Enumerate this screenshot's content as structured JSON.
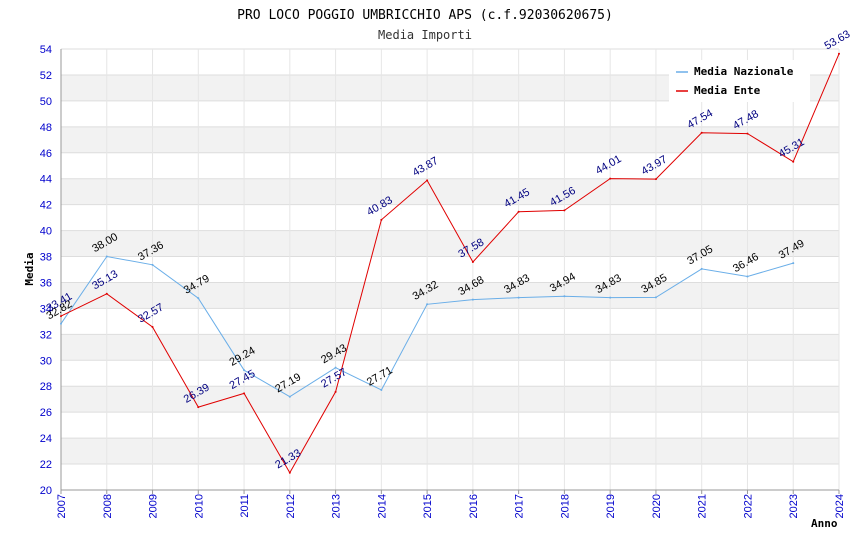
{
  "chart_data": {
    "type": "line",
    "title": "PRO LOCO POGGIO UMBRICCHIO APS (c.f.92030620675)",
    "subtitle": "Media Importi",
    "xlabel": "Anno",
    "ylabel": "Media",
    "ylim": [
      20,
      54
    ],
    "ystep": 2,
    "x": [
      2007,
      2008,
      2009,
      2010,
      2011,
      2012,
      2013,
      2014,
      2015,
      2016,
      2017,
      2018,
      2019,
      2020,
      2021,
      2022,
      2023,
      2024
    ],
    "series": [
      {
        "name": "Media Nazionale",
        "color": "#6aaee8",
        "values": [
          32.82,
          38.0,
          37.36,
          34.79,
          29.24,
          27.19,
          29.43,
          27.71,
          34.32,
          34.68,
          34.83,
          34.94,
          34.83,
          34.85,
          37.05,
          36.46,
          37.49,
          null
        ],
        "labels": [
          "32.82",
          "38.00",
          "37.36",
          "34.79",
          "29.24",
          "27.19",
          "29.43",
          "27.71",
          "34.32",
          "34.68",
          "34.83",
          "34.94",
          "34.83",
          "34.85",
          "37.05",
          "36.46",
          "37.49",
          ""
        ]
      },
      {
        "name": "Media Ente",
        "color": "#e00000",
        "values": [
          33.41,
          35.13,
          32.57,
          26.39,
          27.45,
          21.33,
          27.57,
          40.83,
          43.87,
          37.58,
          41.45,
          41.56,
          44.01,
          43.97,
          47.54,
          47.48,
          45.31,
          53.63
        ],
        "labels": [
          "33.41",
          "35.13",
          "32.57",
          "26.39",
          "27.45",
          "21.33",
          "27.57",
          "40.83",
          "43.87",
          "37.58",
          "41.45",
          "41.56",
          "44.01",
          "43.97",
          "47.54",
          "47.48",
          "45.31",
          "53.63"
        ]
      }
    ],
    "legend_position": "top-right",
    "grid": true
  }
}
